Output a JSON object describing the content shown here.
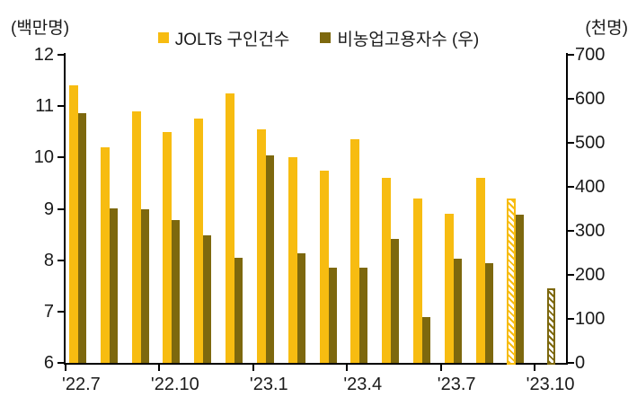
{
  "axes": {
    "left_unit": "(백만명)",
    "right_unit": "(천명)"
  },
  "legend": {
    "items": [
      {
        "label": "JOLTs 구인건수",
        "color": "#F7BC11"
      },
      {
        "label": "비농업고용자수 (우)",
        "color": "#7D680E"
      }
    ]
  },
  "chart_data": {
    "type": "bar",
    "title": "",
    "categories": [
      "'22.7",
      "'22.8",
      "'22.9",
      "'22.10",
      "'22.11",
      "'22.12",
      "'23.1",
      "'23.2",
      "'23.3",
      "'23.4",
      "'23.5",
      "'23.6",
      "'23.7",
      "'23.8",
      "'23.9",
      "'23.10"
    ],
    "x_tick_labels": [
      "'22.7",
      "'22.10",
      "'23.1",
      "'23.4",
      "'23.7",
      "'23.10"
    ],
    "x_labeled_group_indices": [
      0,
      3,
      6,
      9,
      12,
      15
    ],
    "series": [
      {
        "name": "JOLTs 구인건수",
        "axis": "left",
        "unit": "백만명",
        "color": "#F7BC11",
        "values": [
          11.4,
          10.2,
          10.9,
          10.5,
          10.75,
          11.25,
          10.55,
          10.0,
          9.75,
          10.35,
          9.6,
          9.2,
          8.9,
          9.6,
          9.2,
          null
        ],
        "hatched_indices": [
          14
        ]
      },
      {
        "name": "비농업고용자수 (우)",
        "axis": "right",
        "unit": "천명",
        "color": "#7D680E",
        "values": [
          568,
          352,
          350,
          324,
          290,
          239,
          472,
          248,
          217,
          217,
          281,
          105,
          236,
          227,
          336,
          170
        ],
        "hatched_indices": [
          15
        ]
      }
    ],
    "left_axis": {
      "label": "(백만명)",
      "min": 6,
      "max": 12,
      "tick_step": 1,
      "ticks": [
        6,
        7,
        8,
        9,
        10,
        11,
        12
      ]
    },
    "right_axis": {
      "label": "(천명)",
      "min": 0,
      "max": 700,
      "tick_step": 100,
      "ticks": [
        0,
        100,
        200,
        300,
        400,
        500,
        600,
        700
      ]
    },
    "grid": false,
    "legend_position": "top-center",
    "hatched_meaning": "latest/estimated value shown with white diagonal hatch"
  }
}
